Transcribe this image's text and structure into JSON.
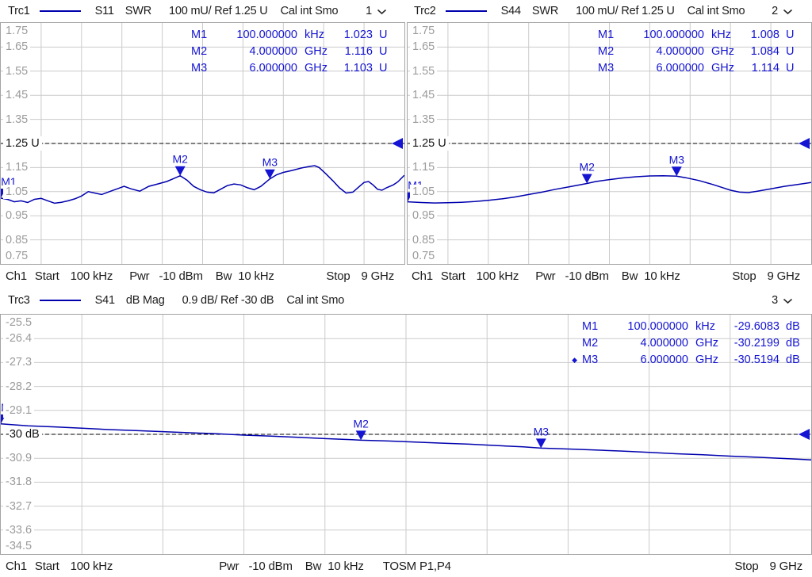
{
  "colors": {
    "trace": "#0000ae",
    "marker_blue": "#1414d2",
    "grid": "#cbcbcb",
    "plot_border": "#a3a3a3",
    "ylabel_gray": "#9c9c9c",
    "text": "#1c1c1c"
  },
  "headers": [
    {
      "trace": "Trc1",
      "meas": "S11",
      "format": "SWR",
      "scale": "100 mU/ Ref 1.25 U",
      "cal": "Cal int Smo",
      "channel": "1"
    },
    {
      "trace": "Trc2",
      "meas": "S44",
      "format": "SWR",
      "scale": "100 mU/ Ref 1.25 U",
      "cal": "Cal int Smo",
      "channel": "2"
    },
    {
      "trace": "Trc3",
      "meas": "S41",
      "format": "dB Mag",
      "scale": "0.9 dB/ Ref -30 dB",
      "cal": "Cal int Smo",
      "channel": "3"
    }
  ],
  "axis_rows": {
    "top": {
      "ch": "Ch1",
      "start_label": "Start",
      "start_value": "100 kHz",
      "pwr_label": "Pwr",
      "pwr_value": "-10 dBm",
      "bw_label": "Bw",
      "bw_value": "10 kHz",
      "stop_label": "Stop",
      "stop_value": "9 GHz"
    },
    "bottom": {
      "ch": "Ch1",
      "start_label": "Start",
      "start_value": "100 kHz",
      "pwr_label": "Pwr",
      "pwr_value": "-10 dBm",
      "bw_label": "Bw",
      "bw_value": "10 kHz",
      "cal_status": "TOSM P1,P4",
      "stop_label": "Stop",
      "stop_value": "9 GHz"
    }
  },
  "chart_data": [
    {
      "type": "line",
      "id": "Trc1",
      "title": "Trc1 S11 SWR",
      "x_unit": "GHz",
      "x_range_GHz": [
        0.0001,
        9
      ],
      "ylim": [
        0.75,
        1.75
      ],
      "scale_per_div": "100 mU",
      "ref_level": 1.25,
      "ref_index": 5,
      "grid": "10x10",
      "ytick_labels": [
        "1.75",
        "1.65",
        "1.55",
        "1.45",
        "1.35",
        "1.25 U",
        "1.15",
        "1.05",
        "0.95",
        "0.85",
        "0.75"
      ],
      "markers": [
        {
          "name": "M1",
          "freq_label": "100.000000",
          "freq_unit": "kHz",
          "value_label": "1.023",
          "value_unit": "U",
          "f_GHz": 0.0001,
          "value": 1.023,
          "active": false
        },
        {
          "name": "M2",
          "freq_label": "4.000000",
          "freq_unit": "GHz",
          "value_label": "1.116",
          "value_unit": "U",
          "f_GHz": 4.0,
          "value": 1.116,
          "active": false
        },
        {
          "name": "M3",
          "freq_label": "6.000000",
          "freq_unit": "GHz",
          "value_label": "1.103",
          "value_unit": "U",
          "f_GHz": 6.0,
          "value": 1.103,
          "active": false
        }
      ],
      "points": [
        [
          0.0001,
          1.023
        ],
        [
          0.15,
          1.018
        ],
        [
          0.3,
          1.008
        ],
        [
          0.45,
          1.012
        ],
        [
          0.6,
          1.005
        ],
        [
          0.75,
          1.018
        ],
        [
          0.9,
          1.022
        ],
        [
          1.05,
          1.012
        ],
        [
          1.2,
          1.002
        ],
        [
          1.35,
          1.006
        ],
        [
          1.5,
          1.012
        ],
        [
          1.65,
          1.02
        ],
        [
          1.8,
          1.032
        ],
        [
          1.95,
          1.05
        ],
        [
          2.1,
          1.044
        ],
        [
          2.25,
          1.038
        ],
        [
          2.45,
          1.052
        ],
        [
          2.6,
          1.062
        ],
        [
          2.75,
          1.072
        ],
        [
          2.9,
          1.062
        ],
        [
          3.1,
          1.052
        ],
        [
          3.3,
          1.072
        ],
        [
          3.5,
          1.082
        ],
        [
          3.7,
          1.092
        ],
        [
          3.85,
          1.104
        ],
        [
          4.0,
          1.116
        ],
        [
          4.15,
          1.098
        ],
        [
          4.3,
          1.072
        ],
        [
          4.45,
          1.058
        ],
        [
          4.6,
          1.048
        ],
        [
          4.75,
          1.045
        ],
        [
          4.9,
          1.06
        ],
        [
          5.05,
          1.075
        ],
        [
          5.2,
          1.082
        ],
        [
          5.35,
          1.078
        ],
        [
          5.5,
          1.066
        ],
        [
          5.65,
          1.058
        ],
        [
          5.8,
          1.072
        ],
        [
          6.0,
          1.103
        ],
        [
          6.15,
          1.12
        ],
        [
          6.3,
          1.13
        ],
        [
          6.5,
          1.138
        ],
        [
          6.7,
          1.148
        ],
        [
          6.9,
          1.155
        ],
        [
          7.0,
          1.158
        ],
        [
          7.1,
          1.15
        ],
        [
          7.25,
          1.124
        ],
        [
          7.4,
          1.096
        ],
        [
          7.55,
          1.066
        ],
        [
          7.7,
          1.044
        ],
        [
          7.85,
          1.048
        ],
        [
          8.0,
          1.072
        ],
        [
          8.1,
          1.088
        ],
        [
          8.2,
          1.092
        ],
        [
          8.3,
          1.078
        ],
        [
          8.4,
          1.06
        ],
        [
          8.5,
          1.056
        ],
        [
          8.6,
          1.066
        ],
        [
          8.75,
          1.078
        ],
        [
          8.85,
          1.09
        ],
        [
          9.0,
          1.118
        ]
      ]
    },
    {
      "type": "line",
      "id": "Trc2",
      "title": "Trc2 S44 SWR",
      "x_unit": "GHz",
      "x_range_GHz": [
        0.0001,
        9
      ],
      "ylim": [
        0.75,
        1.75
      ],
      "scale_per_div": "100 mU",
      "ref_level": 1.25,
      "ref_index": 5,
      "grid": "10x10",
      "ytick_labels": [
        "1.75",
        "1.65",
        "1.55",
        "1.45",
        "1.35",
        "1.25 U",
        "1.15",
        "1.05",
        "0.95",
        "0.85",
        "0.75"
      ],
      "markers": [
        {
          "name": "M1",
          "freq_label": "100.000000",
          "freq_unit": "kHz",
          "value_label": "1.008",
          "value_unit": "U",
          "f_GHz": 0.0001,
          "value": 1.008,
          "active": false
        },
        {
          "name": "M2",
          "freq_label": "4.000000",
          "freq_unit": "GHz",
          "value_label": "1.084",
          "value_unit": "U",
          "f_GHz": 4.0,
          "value": 1.084,
          "active": false
        },
        {
          "name": "M3",
          "freq_label": "6.000000",
          "freq_unit": "GHz",
          "value_label": "1.114",
          "value_unit": "U",
          "f_GHz": 6.0,
          "value": 1.114,
          "active": false
        }
      ],
      "points": [
        [
          0.0001,
          1.008
        ],
        [
          0.3,
          1.005
        ],
        [
          0.6,
          1.003
        ],
        [
          0.9,
          1.004
        ],
        [
          1.2,
          1.006
        ],
        [
          1.5,
          1.009
        ],
        [
          1.8,
          1.014
        ],
        [
          2.1,
          1.02
        ],
        [
          2.4,
          1.028
        ],
        [
          2.7,
          1.038
        ],
        [
          3.0,
          1.048
        ],
        [
          3.3,
          1.06
        ],
        [
          3.6,
          1.07
        ],
        [
          3.8,
          1.077
        ],
        [
          4.0,
          1.084
        ],
        [
          4.2,
          1.092
        ],
        [
          4.5,
          1.1
        ],
        [
          4.8,
          1.107
        ],
        [
          5.1,
          1.112
        ],
        [
          5.4,
          1.115
        ],
        [
          5.7,
          1.116
        ],
        [
          6.0,
          1.114
        ],
        [
          6.2,
          1.108
        ],
        [
          6.5,
          1.096
        ],
        [
          6.8,
          1.08
        ],
        [
          7.0,
          1.068
        ],
        [
          7.2,
          1.056
        ],
        [
          7.4,
          1.048
        ],
        [
          7.6,
          1.046
        ],
        [
          7.8,
          1.052
        ],
        [
          8.1,
          1.062
        ],
        [
          8.4,
          1.072
        ],
        [
          8.7,
          1.08
        ],
        [
          9.0,
          1.088
        ]
      ]
    },
    {
      "type": "line",
      "id": "Trc3",
      "title": "Trc3 S41 dB Mag",
      "x_unit": "GHz",
      "x_range_GHz": [
        0.0001,
        9
      ],
      "ylim": [
        -34.5,
        -25.5
      ],
      "scale_per_div": "0.9 dB",
      "ref_level": -30,
      "ref_index": 5,
      "grid": "10x10",
      "ytick_labels": [
        "-25.5",
        "-26.4",
        "-27.3",
        "-28.2",
        "-29.1",
        "-30 dB",
        "-30.9",
        "-31.8",
        "-32.7",
        "-33.6",
        "-34.5"
      ],
      "markers": [
        {
          "name": "M1",
          "freq_label": "100.000000",
          "freq_unit": "kHz",
          "value_label": "-29.6083",
          "value_unit": "dB",
          "f_GHz": 0.0001,
          "value": -29.6083,
          "active": false
        },
        {
          "name": "M2",
          "freq_label": "4.000000",
          "freq_unit": "GHz",
          "value_label": "-30.2199",
          "value_unit": "dB",
          "f_GHz": 4.0,
          "value": -30.2199,
          "active": false
        },
        {
          "name": "M3",
          "freq_label": "6.000000",
          "freq_unit": "GHz",
          "value_label": "-30.5194",
          "value_unit": "dB",
          "f_GHz": 6.0,
          "value": -30.5194,
          "active": true
        }
      ],
      "points": [
        [
          0.0001,
          -29.608
        ],
        [
          0.3,
          -29.68
        ],
        [
          0.6,
          -29.72
        ],
        [
          0.9,
          -29.77
        ],
        [
          1.2,
          -29.82
        ],
        [
          1.5,
          -29.86
        ],
        [
          1.8,
          -29.9
        ],
        [
          2.1,
          -29.94
        ],
        [
          2.4,
          -29.98
        ],
        [
          2.7,
          -30.03
        ],
        [
          3.0,
          -30.07
        ],
        [
          3.3,
          -30.11
        ],
        [
          3.6,
          -30.16
        ],
        [
          3.9,
          -30.2
        ],
        [
          4.0,
          -30.22
        ],
        [
          4.3,
          -30.25
        ],
        [
          4.6,
          -30.29
        ],
        [
          4.9,
          -30.33
        ],
        [
          5.2,
          -30.37
        ],
        [
          5.5,
          -30.42
        ],
        [
          5.8,
          -30.47
        ],
        [
          6.0,
          -30.52
        ],
        [
          6.3,
          -30.55
        ],
        [
          6.6,
          -30.59
        ],
        [
          6.9,
          -30.63
        ],
        [
          7.2,
          -30.68
        ],
        [
          7.5,
          -30.73
        ],
        [
          7.8,
          -30.77
        ],
        [
          8.1,
          -30.82
        ],
        [
          8.4,
          -30.86
        ],
        [
          8.7,
          -30.91
        ],
        [
          9.0,
          -30.96
        ]
      ]
    }
  ]
}
